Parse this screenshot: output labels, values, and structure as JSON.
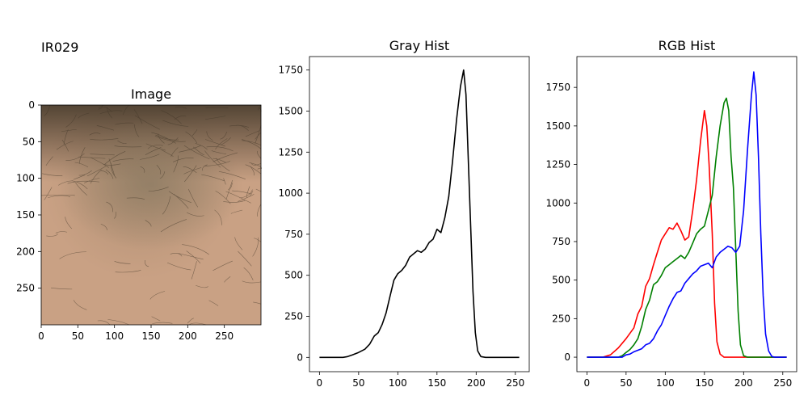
{
  "figure": {
    "suptitle": "IR029"
  },
  "chart_data": [
    {
      "type": "image",
      "title": "Image",
      "xlim": [
        0,
        300
      ],
      "ylim": [
        300,
        0
      ],
      "xticks": [
        0,
        50,
        100,
        150,
        200,
        250
      ],
      "yticks": [
        0,
        50,
        100,
        150,
        200,
        250
      ],
      "colors": {
        "skin_light": "#c9a184",
        "skin_mid": "#b08f73",
        "skin_shadow": "#8a7a62",
        "hair_dark": "#3e3426"
      }
    },
    {
      "type": "line",
      "title": "Gray Hist",
      "xlim": [
        -12.75,
        267.75
      ],
      "ylim": [
        -87,
        1832
      ],
      "xticks": [
        0,
        50,
        100,
        150,
        200,
        250
      ],
      "yticks": [
        0,
        250,
        500,
        750,
        1000,
        1250,
        1500,
        1750
      ],
      "series": [
        {
          "color": "#000000",
          "points": [
            [
              0,
              0
            ],
            [
              30,
              0
            ],
            [
              36,
              5
            ],
            [
              42,
              15
            ],
            [
              50,
              30
            ],
            [
              58,
              50
            ],
            [
              64,
              80
            ],
            [
              70,
              130
            ],
            [
              75,
              150
            ],
            [
              80,
              200
            ],
            [
              85,
              270
            ],
            [
              90,
              370
            ],
            [
              95,
              470
            ],
            [
              100,
              510
            ],
            [
              105,
              530
            ],
            [
              110,
              560
            ],
            [
              115,
              610
            ],
            [
              120,
              630
            ],
            [
              125,
              650
            ],
            [
              130,
              640
            ],
            [
              135,
              660
            ],
            [
              140,
              700
            ],
            [
              145,
              720
            ],
            [
              150,
              780
            ],
            [
              155,
              760
            ],
            [
              160,
              850
            ],
            [
              165,
              980
            ],
            [
              170,
              1200
            ],
            [
              175,
              1450
            ],
            [
              180,
              1650
            ],
            [
              184,
              1750
            ],
            [
              187,
              1600
            ],
            [
              190,
              1200
            ],
            [
              193,
              800
            ],
            [
              196,
              400
            ],
            [
              199,
              150
            ],
            [
              202,
              40
            ],
            [
              206,
              5
            ],
            [
              212,
              0
            ],
            [
              255,
              0
            ]
          ]
        }
      ]
    },
    {
      "type": "line",
      "title": "RGB Hist",
      "xlim": [
        -12.75,
        267.75
      ],
      "ylim": [
        -94,
        1950
      ],
      "xticks": [
        0,
        50,
        100,
        150,
        200,
        250
      ],
      "yticks": [
        0,
        250,
        500,
        750,
        1000,
        1250,
        1500,
        1750
      ],
      "series": [
        {
          "color": "#ff0000",
          "points": [
            [
              0,
              0
            ],
            [
              20,
              0
            ],
            [
              30,
              15
            ],
            [
              40,
              60
            ],
            [
              50,
              120
            ],
            [
              60,
              190
            ],
            [
              65,
              280
            ],
            [
              70,
              330
            ],
            [
              75,
              460
            ],
            [
              80,
              510
            ],
            [
              85,
              600
            ],
            [
              90,
              680
            ],
            [
              95,
              760
            ],
            [
              100,
              800
            ],
            [
              105,
              840
            ],
            [
              110,
              830
            ],
            [
              115,
              870
            ],
            [
              120,
              820
            ],
            [
              125,
              760
            ],
            [
              130,
              780
            ],
            [
              135,
              950
            ],
            [
              140,
              1150
            ],
            [
              145,
              1400
            ],
            [
              150,
              1600
            ],
            [
              153,
              1500
            ],
            [
              156,
              1250
            ],
            [
              160,
              800
            ],
            [
              163,
              350
            ],
            [
              166,
              100
            ],
            [
              170,
              20
            ],
            [
              175,
              0
            ],
            [
              255,
              0
            ]
          ]
        },
        {
          "color": "#008000",
          "points": [
            [
              0,
              0
            ],
            [
              40,
              0
            ],
            [
              45,
              10
            ],
            [
              50,
              30
            ],
            [
              55,
              50
            ],
            [
              60,
              80
            ],
            [
              65,
              120
            ],
            [
              70,
              200
            ],
            [
              75,
              310
            ],
            [
              80,
              370
            ],
            [
              85,
              470
            ],
            [
              90,
              490
            ],
            [
              95,
              530
            ],
            [
              100,
              580
            ],
            [
              105,
              600
            ],
            [
              110,
              620
            ],
            [
              115,
              640
            ],
            [
              120,
              660
            ],
            [
              125,
              640
            ],
            [
              130,
              680
            ],
            [
              135,
              740
            ],
            [
              140,
              800
            ],
            [
              145,
              830
            ],
            [
              150,
              850
            ],
            [
              155,
              950
            ],
            [
              160,
              1050
            ],
            [
              165,
              1300
            ],
            [
              170,
              1500
            ],
            [
              175,
              1650
            ],
            [
              178,
              1680
            ],
            [
              181,
              1600
            ],
            [
              184,
              1300
            ],
            [
              187,
              1100
            ],
            [
              190,
              700
            ],
            [
              193,
              300
            ],
            [
              196,
              80
            ],
            [
              200,
              10
            ],
            [
              205,
              0
            ],
            [
              255,
              0
            ]
          ]
        },
        {
          "color": "#0000ff",
          "points": [
            [
              0,
              0
            ],
            [
              45,
              0
            ],
            [
              50,
              15
            ],
            [
              55,
              20
            ],
            [
              60,
              35
            ],
            [
              65,
              45
            ],
            [
              70,
              55
            ],
            [
              75,
              80
            ],
            [
              80,
              90
            ],
            [
              85,
              120
            ],
            [
              90,
              170
            ],
            [
              95,
              210
            ],
            [
              100,
              270
            ],
            [
              105,
              330
            ],
            [
              110,
              380
            ],
            [
              115,
              420
            ],
            [
              120,
              430
            ],
            [
              125,
              480
            ],
            [
              130,
              510
            ],
            [
              135,
              540
            ],
            [
              140,
              560
            ],
            [
              145,
              590
            ],
            [
              150,
              600
            ],
            [
              155,
              610
            ],
            [
              160,
              580
            ],
            [
              165,
              650
            ],
            [
              170,
              680
            ],
            [
              175,
              700
            ],
            [
              180,
              720
            ],
            [
              185,
              710
            ],
            [
              190,
              680
            ],
            [
              195,
              720
            ],
            [
              200,
              950
            ],
            [
              205,
              1350
            ],
            [
              210,
              1700
            ],
            [
              213,
              1850
            ],
            [
              216,
              1700
            ],
            [
              219,
              1300
            ],
            [
              222,
              800
            ],
            [
              225,
              400
            ],
            [
              228,
              150
            ],
            [
              232,
              40
            ],
            [
              236,
              5
            ],
            [
              240,
              0
            ],
            [
              255,
              0
            ]
          ]
        }
      ]
    }
  ]
}
